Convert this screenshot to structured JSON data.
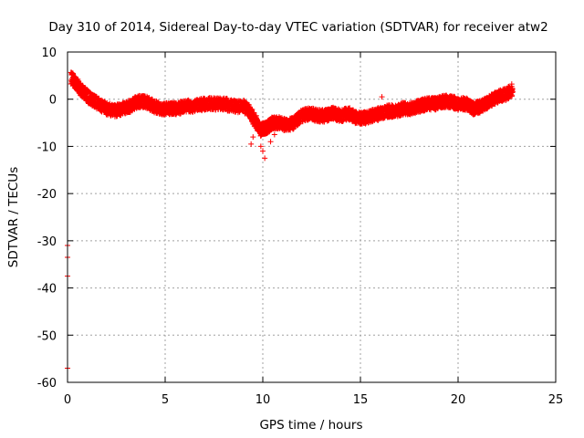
{
  "chart_data": {
    "type": "scatter",
    "title": "Day 310 of 2014, Sidereal Day-to-day VTEC variation (SDTVAR) for receiver atw2",
    "xlabel": "GPS time / hours",
    "ylabel": "SDTVAR / TECUs",
    "xlim": [
      0,
      25
    ],
    "ylim": [
      -60,
      10
    ],
    "x_ticks": [
      0,
      5,
      10,
      15,
      20,
      25
    ],
    "y_ticks": [
      -60,
      -50,
      -40,
      -30,
      -20,
      -10,
      0,
      10
    ],
    "grid": true,
    "marker": "plus",
    "series_color": "#ff0000",
    "trend": {
      "x": [
        0.2,
        0.5,
        0.8,
        1.2,
        1.6,
        2.0,
        2.4,
        2.8,
        3.2,
        3.6,
        4.0,
        4.4,
        4.8,
        5.2,
        5.6,
        6.0,
        6.5,
        7.0,
        7.5,
        8.0,
        8.5,
        9.0,
        9.3,
        9.6,
        9.9,
        10.2,
        10.5,
        10.8,
        11.2,
        11.6,
        12.0,
        12.4,
        12.8,
        13.2,
        13.6,
        14.0,
        14.4,
        14.8,
        15.2,
        15.6,
        16.0,
        16.4,
        16.8,
        17.2,
        17.6,
        18.0,
        18.4,
        18.8,
        19.2,
        19.6,
        20.0,
        20.4,
        20.8,
        21.2,
        21.6,
        22.0,
        22.4,
        22.8
      ],
      "y": [
        4.5,
        3.0,
        1.5,
        0.0,
        -1.0,
        -2.0,
        -2.5,
        -2.0,
        -1.5,
        -0.5,
        -0.5,
        -1.5,
        -2.0,
        -2.0,
        -2.0,
        -1.5,
        -1.5,
        -1.0,
        -1.0,
        -1.0,
        -1.5,
        -1.5,
        -2.5,
        -4.5,
        -6.5,
        -6.0,
        -5.0,
        -5.0,
        -5.5,
        -5.0,
        -3.5,
        -3.0,
        -3.5,
        -3.5,
        -3.0,
        -3.5,
        -3.0,
        -4.0,
        -4.0,
        -3.5,
        -3.0,
        -2.5,
        -2.5,
        -2.0,
        -2.0,
        -1.5,
        -1.0,
        -1.0,
        -0.5,
        -0.5,
        -1.0,
        -1.0,
        -2.0,
        -1.5,
        -0.5,
        0.5,
        1.0,
        2.0
      ]
    },
    "outliers": [
      {
        "x": 0.0,
        "y": -31.0
      },
      {
        "x": 0.0,
        "y": -33.5
      },
      {
        "x": 0.0,
        "y": -37.5
      },
      {
        "x": 0.0,
        "y": -57.0
      },
      {
        "x": 9.4,
        "y": -9.5
      },
      {
        "x": 9.5,
        "y": -8.0
      },
      {
        "x": 10.1,
        "y": -12.5
      },
      {
        "x": 10.0,
        "y": -11.0
      },
      {
        "x": 9.9,
        "y": -10.0
      },
      {
        "x": 10.4,
        "y": -9.0
      },
      {
        "x": 10.6,
        "y": -7.5
      },
      {
        "x": 16.1,
        "y": 0.5
      },
      {
        "x": 15.9,
        "y": -4.5
      }
    ]
  }
}
